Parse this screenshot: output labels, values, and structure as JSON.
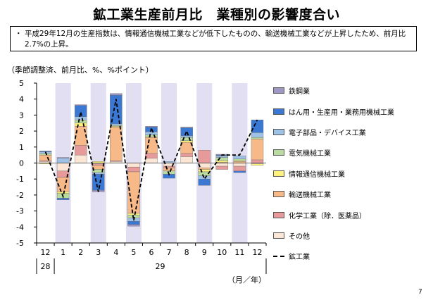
{
  "page": {
    "title": "鉱工業生産前月比　業種別の影響度合い",
    "note_bullet": "・",
    "note_text": "平成29年12月の生産指数は、情報通信機械工業などが低下したものの、輸送機械工業などが上昇したため、前月比2.7%の上昇。",
    "unit_top": "（季節調整済、前月比、%、%ポイント）",
    "unit_bottom": "（月／年）",
    "page_number": "7"
  },
  "chart_data": {
    "type": "bar",
    "stacked": true,
    "ylim": [
      -5,
      5
    ],
    "yticks": [
      "5",
      "4",
      "3",
      "2",
      "1",
      "0",
      "-1",
      "-2",
      "-3",
      "-4",
      "-5"
    ],
    "categories": [
      "12",
      "1",
      "2",
      "3",
      "4",
      "5",
      "6",
      "7",
      "8",
      "9",
      "10",
      "11",
      "12"
    ],
    "year_labels": [
      "28",
      "29"
    ],
    "shaded_categories": [
      1,
      3,
      5,
      7,
      9,
      11
    ],
    "grid": false,
    "legend_position": "right",
    "series": [
      {
        "name": "鉄鋼業",
        "color": "#9f97c6",
        "values": [
          0.0,
          0.05,
          0.05,
          -0.1,
          0.1,
          -0.1,
          0.05,
          0.0,
          0.05,
          0.0,
          0.05,
          0.0,
          0.0
        ]
      },
      {
        "name": "はん用・生産用・業務用機械工業",
        "color": "#3b78d4",
        "values": [
          0.05,
          -0.1,
          0.7,
          -1.0,
          1.8,
          -0.2,
          0.3,
          -0.25,
          0.5,
          -0.4,
          0.05,
          -0.1,
          0.8
        ]
      },
      {
        "name": "電子部品・デバイス工業",
        "color": "#9ec1e6",
        "values": [
          0.1,
          0.3,
          0.2,
          -0.1,
          0.1,
          -0.2,
          0.2,
          0.1,
          0.1,
          -0.2,
          0.1,
          0.2,
          0.3
        ]
      },
      {
        "name": "電気機械工業",
        "color": "#b9dba0",
        "values": [
          0.1,
          -0.3,
          0.2,
          -0.2,
          0.05,
          -0.2,
          0.1,
          -0.2,
          0.2,
          -0.25,
          0.2,
          0.1,
          0.1
        ]
      },
      {
        "name": "情報通信機械工業",
        "color": "#fff27a",
        "values": [
          -0.05,
          -0.1,
          0.2,
          0.1,
          0.05,
          -0.1,
          0.05,
          0.0,
          0.1,
          -0.15,
          0.1,
          0.05,
          -0.1
        ]
      },
      {
        "name": "輸送機械工業",
        "color": "#f7b988",
        "values": [
          0.35,
          -0.9,
          1.2,
          -0.25,
          2.1,
          -2.6,
          1.0,
          -0.2,
          0.7,
          -0.1,
          0.05,
          0.1,
          1.3
        ]
      },
      {
        "name": "化学工業（除．医薬品）",
        "color": "#e79a9a",
        "values": [
          0.05,
          -0.4,
          0.6,
          -0.1,
          0.05,
          -0.3,
          0.3,
          -0.1,
          0.2,
          0.8,
          -0.2,
          -0.3,
          0.2
        ]
      },
      {
        "name": "その他",
        "color": "#fbe5d4",
        "values": [
          0.1,
          -0.5,
          0.5,
          -0.05,
          0.1,
          -0.25,
          0.3,
          -0.2,
          0.4,
          -0.3,
          -0.2,
          -0.2,
          -0.05
        ]
      }
    ],
    "line": {
      "name": "鉱工業",
      "values": [
        0.7,
        -2.1,
        3.2,
        -1.8,
        4.0,
        -3.6,
        2.2,
        -0.7,
        2.0,
        -1.0,
        0.5,
        0.5,
        2.7
      ]
    }
  }
}
